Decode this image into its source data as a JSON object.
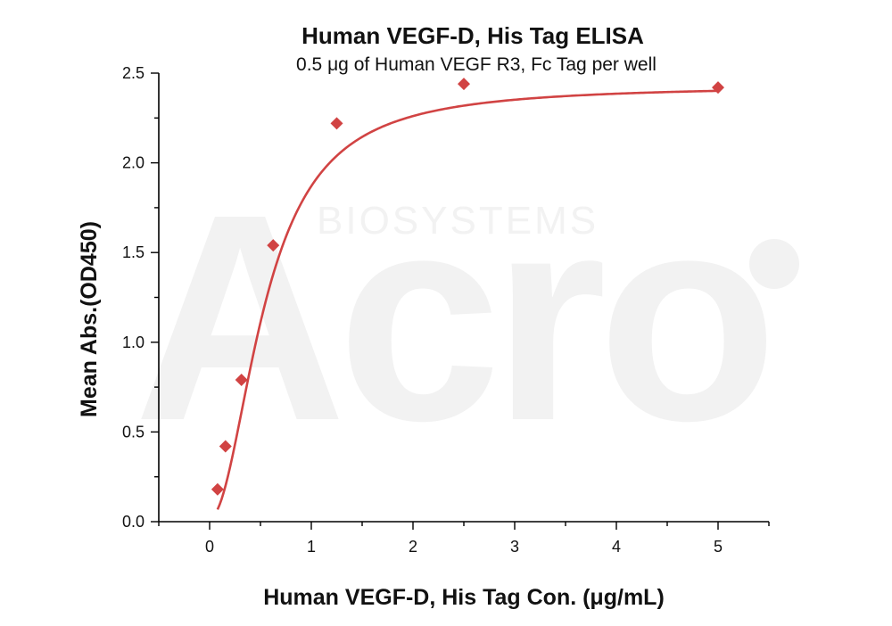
{
  "colors": {
    "series": "#d14343",
    "axis": "#000000",
    "watermark": "#f2f2f2"
  },
  "watermark": {
    "brand": "Acro",
    "tagline": "BIOSYSTEMS"
  },
  "chart_data": {
    "type": "scatter",
    "title": "Human VEGF-D, His Tag ELISA",
    "subtitle": "0.5 μg of Human VEGF R3, Fc Tag per well",
    "xlabel": "Human VEGF-D, His Tag Con. (μg/mL)",
    "ylabel": "Mean Abs.(OD450)",
    "xlim": [
      -0.5,
      5.5
    ],
    "ylim": [
      0,
      2.5
    ],
    "xticks": [
      0,
      1,
      2,
      3,
      4,
      5
    ],
    "xtick_labels": [
      "0",
      "1",
      "2",
      "3",
      "4",
      "5"
    ],
    "yticks": [
      0,
      0.5,
      1.0,
      1.5,
      2.0,
      2.5
    ],
    "ytick_labels": [
      "0.0",
      "0.5",
      "1.0",
      "1.5",
      "2.0",
      "2.5"
    ],
    "grid": false,
    "series": [
      {
        "marker": "diamond",
        "fit": "four-parameter logistic curve",
        "x": [
          0.078,
          0.156,
          0.313,
          0.625,
          1.25,
          2.5,
          5
        ],
        "y": [
          0.18,
          0.42,
          0.79,
          1.54,
          2.22,
          2.44,
          2.42
        ]
      }
    ]
  }
}
